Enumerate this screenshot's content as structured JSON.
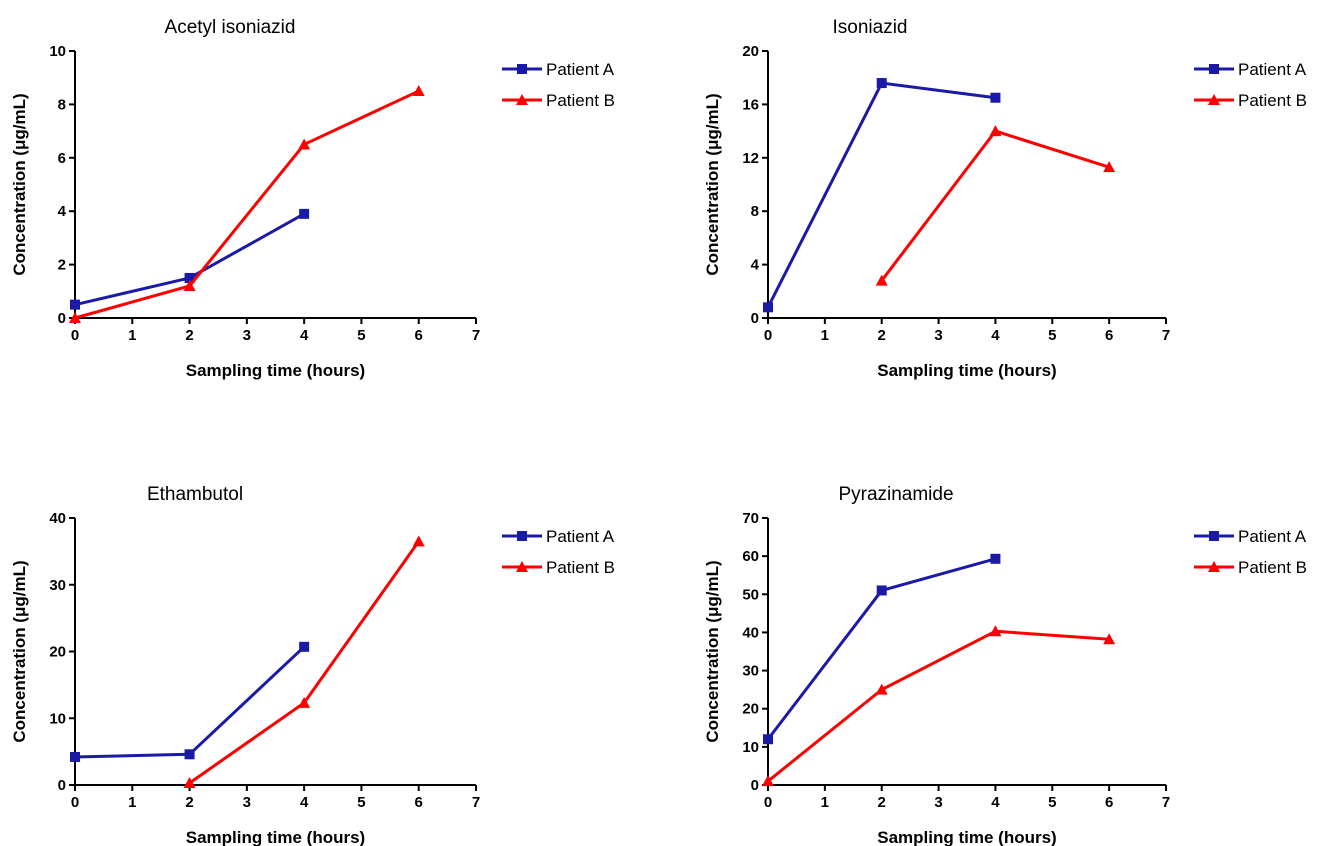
{
  "colors": {
    "patient_a": "#1a1aa6",
    "patient_b": "#ff0000",
    "axis": "#000000"
  },
  "chart_data": [
    {
      "type": "line",
      "title": "Acetyl isoniazid",
      "xlabel": "Sampling time (hours)",
      "ylabel": "Concentration (μg/mL)",
      "xlim": [
        0,
        7
      ],
      "ylim": [
        0,
        10
      ],
      "xticks": [
        0,
        1,
        2,
        3,
        4,
        5,
        6,
        7
      ],
      "yticks": [
        0,
        2,
        4,
        6,
        8,
        10
      ],
      "legend_position": "top-right",
      "grid": false,
      "series": [
        {
          "name": "Patient A",
          "marker": "square",
          "x": [
            0,
            2,
            4
          ],
          "y": [
            0.5,
            1.5,
            3.9
          ]
        },
        {
          "name": "Patient B",
          "marker": "triangle",
          "x": [
            0,
            2,
            4,
            6
          ],
          "y": [
            0.0,
            1.2,
            6.5,
            8.5
          ]
        }
      ]
    },
    {
      "type": "line",
      "title": "Isoniazid",
      "xlabel": "Sampling time (hours)",
      "ylabel": "Concentration (μg/mL)",
      "xlim": [
        0,
        7
      ],
      "ylim": [
        0,
        20
      ],
      "xticks": [
        0,
        1,
        2,
        3,
        4,
        5,
        6,
        7
      ],
      "yticks": [
        0,
        4,
        8,
        12,
        16,
        20
      ],
      "legend_position": "top-right",
      "grid": false,
      "series": [
        {
          "name": "Patient A",
          "marker": "square",
          "x": [
            0,
            2,
            4
          ],
          "y": [
            0.8,
            17.6,
            16.5
          ]
        },
        {
          "name": "Patient B",
          "marker": "triangle",
          "x": [
            2,
            4,
            6
          ],
          "y": [
            2.8,
            14.0,
            11.3
          ]
        }
      ]
    },
    {
      "type": "line",
      "title": "Ethambutol",
      "xlabel": "Sampling time (hours)",
      "ylabel": "Concentration (μg/mL)",
      "xlim": [
        0,
        7
      ],
      "ylim": [
        0,
        40
      ],
      "xticks": [
        0,
        1,
        2,
        3,
        4,
        5,
        6,
        7
      ],
      "yticks": [
        0,
        10,
        20,
        30,
        40
      ],
      "legend_position": "top-right",
      "grid": false,
      "series": [
        {
          "name": "Patient A",
          "marker": "square",
          "x": [
            0,
            2,
            4
          ],
          "y": [
            4.2,
            4.6,
            20.7
          ]
        },
        {
          "name": "Patient B",
          "marker": "triangle",
          "x": [
            2,
            4,
            6
          ],
          "y": [
            0.3,
            12.3,
            36.5
          ]
        }
      ]
    },
    {
      "type": "line",
      "title": "Pyrazinamide",
      "xlabel": "Sampling time (hours)",
      "ylabel": "Concentration (μg/mL)",
      "xlim": [
        0,
        7
      ],
      "ylim": [
        0,
        70
      ],
      "xticks": [
        0,
        1,
        2,
        3,
        4,
        5,
        6,
        7
      ],
      "yticks": [
        0,
        10,
        20,
        30,
        40,
        50,
        60,
        70
      ],
      "legend_position": "top-right",
      "grid": false,
      "series": [
        {
          "name": "Patient A",
          "marker": "square",
          "x": [
            0,
            2,
            4
          ],
          "y": [
            12.0,
            51.0,
            59.3
          ]
        },
        {
          "name": "Patient B",
          "marker": "triangle",
          "x": [
            0,
            2,
            4,
            6
          ],
          "y": [
            1.0,
            25.0,
            40.3,
            38.2
          ]
        }
      ]
    }
  ]
}
